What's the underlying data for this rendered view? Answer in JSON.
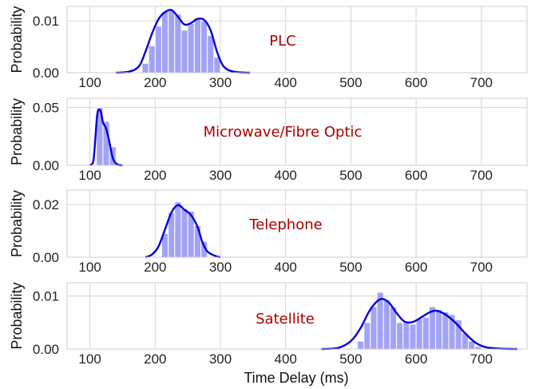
{
  "chart_data": {
    "type": "histogram",
    "xlabel": "Time Delay (ms)",
    "x_ticks": [
      100,
      200,
      300,
      400,
      500,
      600,
      700
    ],
    "xlim": [
      65,
      770
    ],
    "bin_width": 10,
    "grid": true,
    "colors": {
      "bar": "#8c8cf2",
      "line": "#0000dd",
      "label": "#aa0000"
    },
    "panels": [
      {
        "label": "PLC",
        "ylabel": "Probability",
        "ylim": [
          0,
          0.0128
        ],
        "y_ticks": [
          0.0,
          0.01
        ],
        "y_tick_labels": [
          "0.00",
          "0.01"
        ],
        "bins": [
          [
            180,
            0.0018
          ],
          [
            190,
            0.0052
          ],
          [
            200,
            0.009
          ],
          [
            210,
            0.0118
          ],
          [
            220,
            0.012
          ],
          [
            230,
            0.0113
          ],
          [
            240,
            0.0082
          ],
          [
            250,
            0.0095
          ],
          [
            260,
            0.0103
          ],
          [
            270,
            0.01
          ],
          [
            280,
            0.0072
          ],
          [
            290,
            0.003
          ]
        ],
        "kde": [
          [
            140,
            0
          ],
          [
            160,
            0.0002
          ],
          [
            175,
            0.0012
          ],
          [
            185,
            0.004
          ],
          [
            195,
            0.0075
          ],
          [
            205,
            0.0103
          ],
          [
            215,
            0.0117
          ],
          [
            225,
            0.0121
          ],
          [
            235,
            0.0108
          ],
          [
            245,
            0.0093
          ],
          [
            255,
            0.0096
          ],
          [
            265,
            0.0104
          ],
          [
            275,
            0.0102
          ],
          [
            285,
            0.0082
          ],
          [
            295,
            0.004
          ],
          [
            305,
            0.0012
          ],
          [
            320,
            0.0002
          ],
          [
            345,
            0
          ]
        ]
      },
      {
        "label": "Microwave/Fibre Optic",
        "ylabel": "Probability",
        "ylim": [
          0,
          0.058
        ],
        "y_ticks": [
          0.0,
          0.05
        ],
        "y_tick_labels": [
          "0.00",
          "0.05"
        ],
        "bins": [
          [
            110,
            0.05
          ],
          [
            120,
            0.038
          ],
          [
            130,
            0.016
          ]
        ],
        "kde": [
          [
            100,
            0
          ],
          [
            105,
            0.003
          ],
          [
            108,
            0.02
          ],
          [
            111,
            0.043
          ],
          [
            114,
            0.048
          ],
          [
            117,
            0.046
          ],
          [
            120,
            0.037
          ],
          [
            124,
            0.033
          ],
          [
            128,
            0.025
          ],
          [
            132,
            0.014
          ],
          [
            136,
            0.005
          ],
          [
            142,
            0.0008
          ],
          [
            150,
            0
          ]
        ]
      },
      {
        "label": "Telephone",
        "ylabel": "Probability",
        "ylim": [
          0,
          0.0255
        ],
        "y_ticks": [
          0.0,
          0.02
        ],
        "y_tick_labels": [
          "0.00",
          "0.02"
        ],
        "bins": [
          [
            210,
            0.009
          ],
          [
            220,
            0.017
          ],
          [
            230,
            0.021
          ],
          [
            240,
            0.0185
          ],
          [
            250,
            0.0175
          ],
          [
            260,
            0.012
          ],
          [
            270,
            0.006
          ]
        ],
        "kde": [
          [
            185,
            0
          ],
          [
            195,
            0.001
          ],
          [
            205,
            0.004
          ],
          [
            215,
            0.0105
          ],
          [
            225,
            0.017
          ],
          [
            235,
            0.0198
          ],
          [
            245,
            0.018
          ],
          [
            255,
            0.016
          ],
          [
            265,
            0.0115
          ],
          [
            272,
            0.006
          ],
          [
            280,
            0.0022
          ],
          [
            292,
            0.0005
          ],
          [
            300,
            0
          ]
        ]
      },
      {
        "label": "Satellite",
        "ylabel": "Probability",
        "ylim": [
          0,
          0.0125
        ],
        "y_ticks": [
          0.0,
          0.01
        ],
        "y_tick_labels": [
          "0.00",
          "0.01"
        ],
        "bins": [
          [
            510,
            0.0015
          ],
          [
            520,
            0.005
          ],
          [
            530,
            0.008
          ],
          [
            540,
            0.0107
          ],
          [
            550,
            0.0093
          ],
          [
            560,
            0.008
          ],
          [
            570,
            0.005
          ],
          [
            580,
            0.005
          ],
          [
            590,
            0.0047
          ],
          [
            600,
            0.0058
          ],
          [
            610,
            0.006
          ],
          [
            620,
            0.008
          ],
          [
            630,
            0.0075
          ],
          [
            640,
            0.007
          ],
          [
            650,
            0.0065
          ],
          [
            660,
            0.0055
          ],
          [
            670,
            0.003
          ],
          [
            680,
            0.0015
          ],
          [
            690,
            0.0005
          ]
        ],
        "kde": [
          [
            455,
            0
          ],
          [
            480,
            0.0002
          ],
          [
            500,
            0.0015
          ],
          [
            515,
            0.004
          ],
          [
            530,
            0.0075
          ],
          [
            545,
            0.0094
          ],
          [
            558,
            0.0088
          ],
          [
            570,
            0.0068
          ],
          [
            582,
            0.0052
          ],
          [
            595,
            0.0051
          ],
          [
            608,
            0.006
          ],
          [
            622,
            0.007
          ],
          [
            632,
            0.0072
          ],
          [
            645,
            0.0065
          ],
          [
            660,
            0.005
          ],
          [
            675,
            0.003
          ],
          [
            690,
            0.0013
          ],
          [
            705,
            0.0004
          ],
          [
            725,
            0.0001
          ],
          [
            755,
            0
          ]
        ]
      }
    ]
  }
}
